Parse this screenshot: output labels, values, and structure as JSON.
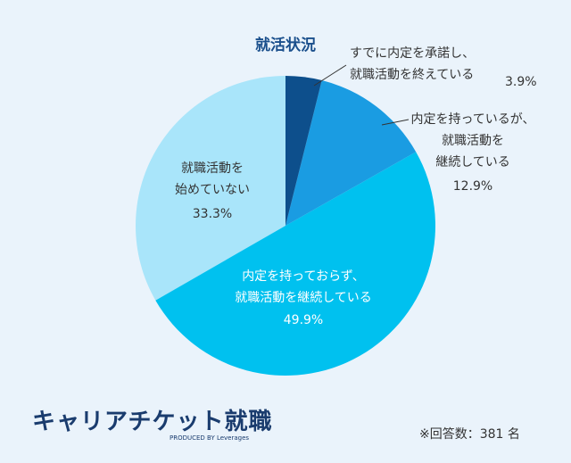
{
  "chart_data": {
    "type": "pie",
    "title": "就活状況",
    "categories": [
      "すでに内定を承諾し、\n就職活動を終えている",
      "内定を持っているが、\n就職活動を\n継続している",
      "内定を持っておらず、\n就職活動を継続している",
      "就職活動を\n始めていない"
    ],
    "values": [
      3.9,
      12.9,
      49.9,
      33.3
    ],
    "value_labels": [
      "3.9%",
      "12.9%",
      "49.9%",
      "33.3%"
    ],
    "colors": [
      "#0d4f8c",
      "#1a9ce2",
      "#00c1ef",
      "#a9e5fa"
    ],
    "note": "※回答数：381 名"
  },
  "brand": {
    "logo": "キャリアチケット就職",
    "sub": "PRODUCED BY Leverages"
  }
}
